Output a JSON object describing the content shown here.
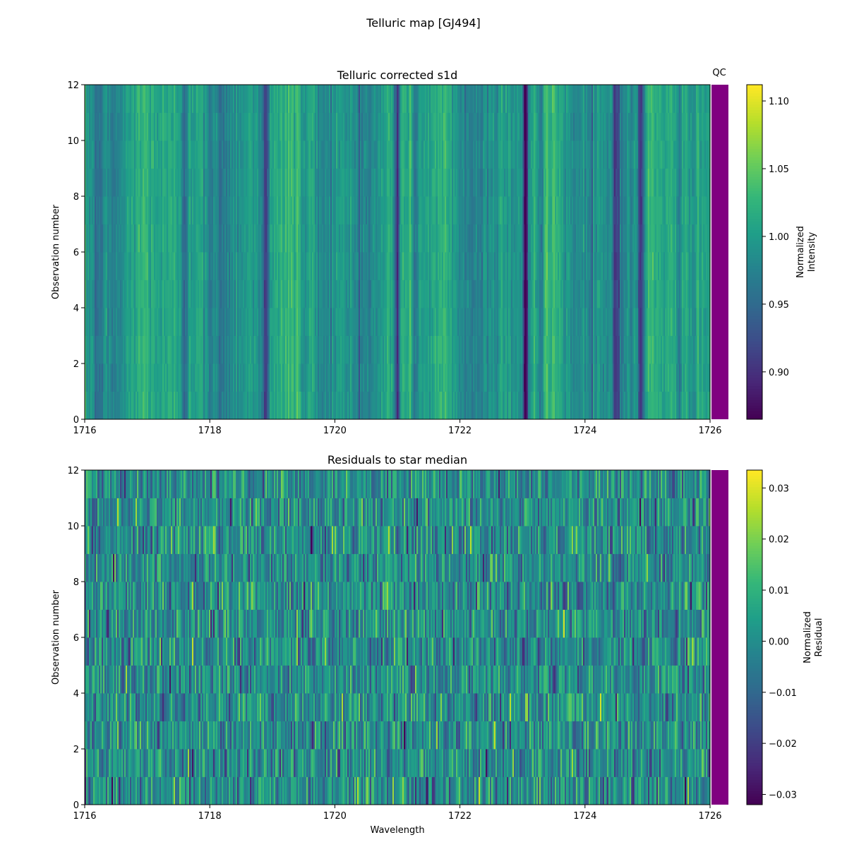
{
  "figure": {
    "suptitle": "Telluric map [GJ494]",
    "qc_label": "QC",
    "qc_color": "#800080"
  },
  "chart_data": [
    {
      "type": "heatmap",
      "title": "Telluric corrected s1d",
      "xlabel": "",
      "ylabel": "Observation number",
      "xlim": [
        1716,
        1726
      ],
      "ylim": [
        0,
        12
      ],
      "x_ticks": [
        "1716",
        "1718",
        "1720",
        "1722",
        "1724",
        "1726"
      ],
      "y_ticks": [
        "0",
        "2",
        "4",
        "6",
        "8",
        "10",
        "12"
      ],
      "n_observations": 12,
      "colormap": "viridis",
      "colorbar": {
        "label_line1": "Normalized",
        "label_line2": "Intensity",
        "range": [
          0.865,
          1.112
        ],
        "ticks": [
          "0.90",
          "0.95",
          "1.00",
          "1.05",
          "1.10"
        ]
      },
      "absorption_lines": [
        {
          "wavelength": 1716.2,
          "depth": 0.05
        },
        {
          "wavelength": 1717.6,
          "depth": 0.06
        },
        {
          "wavelength": 1718.9,
          "depth": 0.09
        },
        {
          "wavelength": 1719.5,
          "depth": 0.03
        },
        {
          "wavelength": 1721.0,
          "depth": 0.12
        },
        {
          "wavelength": 1721.3,
          "depth": 0.04
        },
        {
          "wavelength": 1723.05,
          "depth": 0.14
        },
        {
          "wavelength": 1723.3,
          "depth": 0.07
        },
        {
          "wavelength": 1724.5,
          "depth": 0.08
        },
        {
          "wavelength": 1724.9,
          "depth": 0.12
        },
        {
          "wavelength": 1725.5,
          "depth": 0.04
        }
      ]
    },
    {
      "type": "heatmap",
      "title": "Residuals to star median",
      "xlabel": "Wavelength",
      "ylabel": "Observation number",
      "xlim": [
        1716,
        1726
      ],
      "ylim": [
        0,
        12
      ],
      "x_ticks": [
        "1716",
        "1718",
        "1720",
        "1722",
        "1724",
        "1726"
      ],
      "y_ticks": [
        "0",
        "2",
        "4",
        "6",
        "8",
        "10",
        "12"
      ],
      "n_observations": 12,
      "colormap": "viridis",
      "colorbar": {
        "label_line1": "Normalized",
        "label_line2": "Residual",
        "range": [
          -0.032,
          0.0335
        ],
        "ticks": [
          "−0.03",
          "−0.02",
          "−0.01",
          "0.00",
          "0.01",
          "0.02",
          "0.03"
        ]
      }
    }
  ]
}
